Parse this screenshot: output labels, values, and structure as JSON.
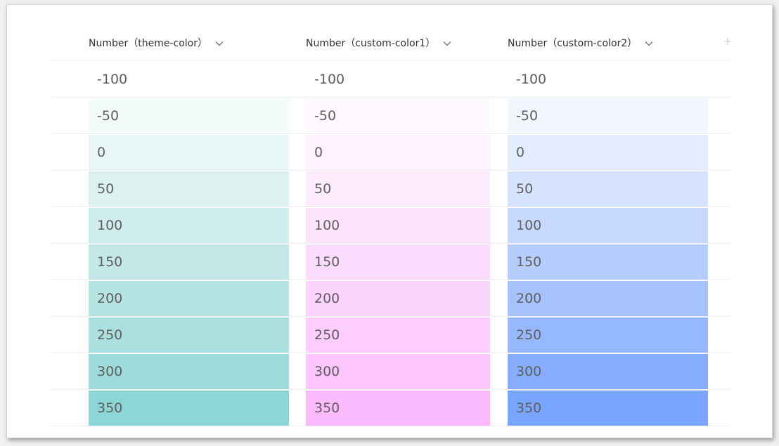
{
  "columns": [
    {
      "header": "Number（theme-color）",
      "values": [
        "-100",
        "-50",
        "0",
        "50",
        "100",
        "150",
        "200",
        "250",
        "300",
        "350"
      ],
      "colors": [
        "#ffffff",
        "#f3fcfb",
        "#e8f7f6",
        "#dcf2f1",
        "#d0eded",
        "#c3e8e8",
        "#b6e4e3",
        "#aae0df",
        "#9ddcdb",
        "#8cd6d8"
      ]
    },
    {
      "header": "Number（custom-color1）",
      "values": [
        "-100",
        "-50",
        "0",
        "50",
        "100",
        "150",
        "200",
        "250",
        "300",
        "350"
      ],
      "colors": [
        "#ffffff",
        "#fef9fe",
        "#fdf2fe",
        "#fdebfe",
        "#fde4fe",
        "#fcdcfe",
        "#fcd5fe",
        "#fccdfe",
        "#fcc5fe",
        "#fbbbfe"
      ]
    },
    {
      "header": "Number（custom-color2）",
      "values": [
        "-100",
        "-50",
        "0",
        "50",
        "100",
        "150",
        "200",
        "250",
        "300",
        "350"
      ],
      "colors": [
        "#ffffff",
        "#f2f6ff",
        "#e4ecff",
        "#d6e3fe",
        "#c7d9fe",
        "#b6cefe",
        "#a6c3fe",
        "#95b8fe",
        "#87aefe",
        "#78a5fd"
      ]
    }
  ],
  "icons": {
    "header_menu": "chevron-down-icon",
    "add_column": "add-column-icon"
  }
}
